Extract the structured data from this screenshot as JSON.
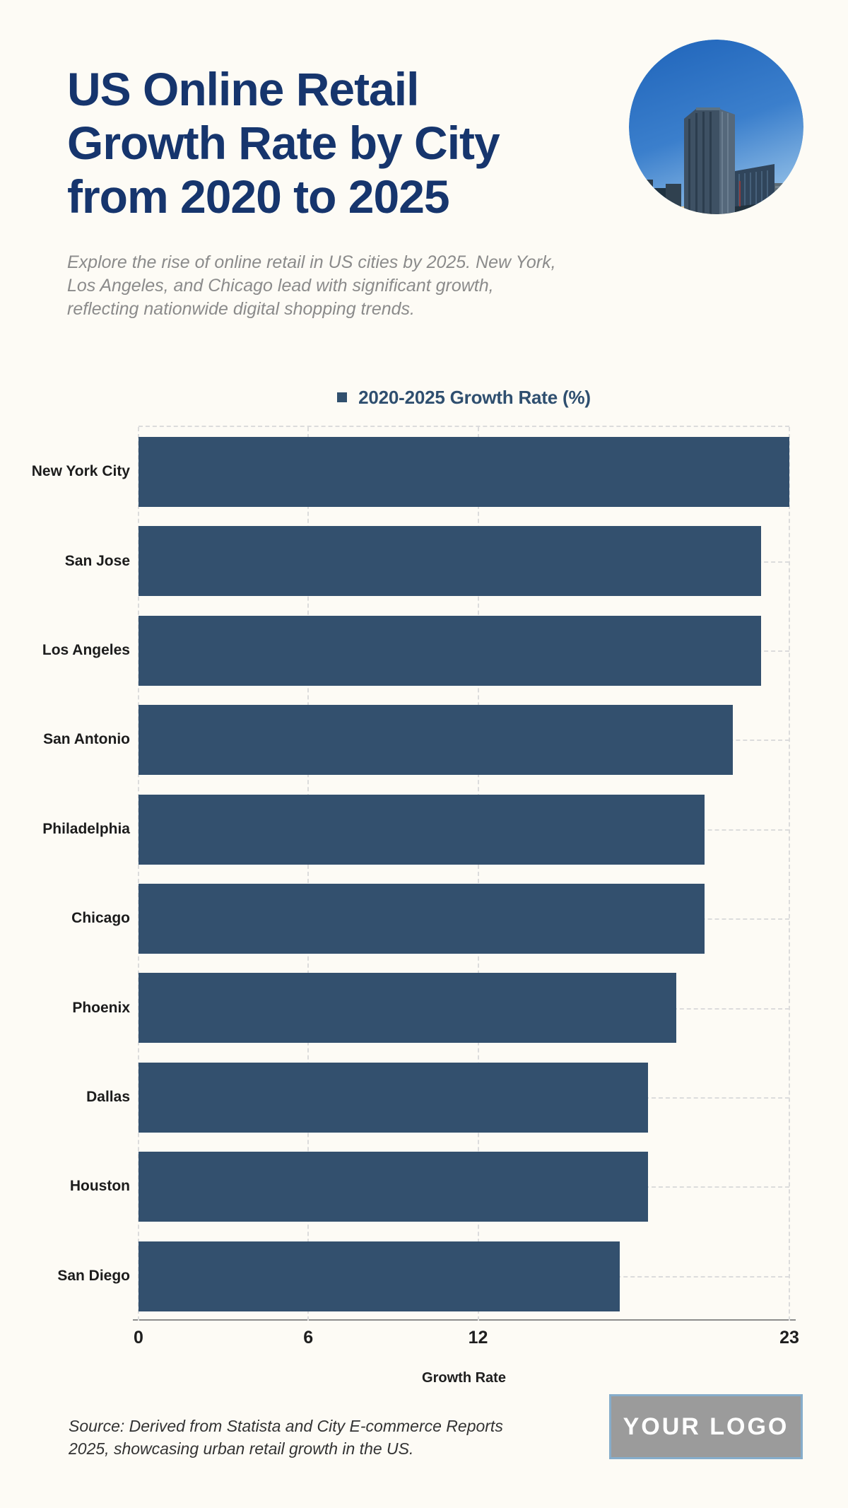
{
  "page": {
    "background": "#FDFBF5"
  },
  "header": {
    "title_lines": [
      "US Online Retail",
      "Growth Rate by City",
      "from 2020 to 2025"
    ],
    "title_color": "#16356D",
    "image": "city-skyline-photo"
  },
  "subtitle": {
    "lines": [
      "Explore the rise of online retail in US cities by 2025. New York,",
      "Los Angeles, and Chicago lead with significant growth,",
      "reflecting nationwide digital shopping trends."
    ]
  },
  "chart_data": {
    "type": "bar",
    "orientation": "horizontal",
    "legend_label": "2020-2025 Growth Rate (%)",
    "legend_position": "top",
    "categories": [
      "New York City",
      "San Jose",
      "Los Angeles",
      "San Antonio",
      "Philadelphia",
      "Chicago",
      "Phoenix",
      "Dallas",
      "Houston",
      "San Diego"
    ],
    "values": [
      23,
      22,
      22,
      21,
      20,
      20,
      19,
      18,
      18,
      17
    ],
    "xlabel": "Growth Rate",
    "xlim": [
      0,
      23
    ],
    "xticks": [
      0,
      6,
      12,
      23
    ],
    "bar_color": "#33506E",
    "grid": true
  },
  "footer": {
    "source_lines": [
      "Source: Derived from Statista and City E-commerce Reports",
      "2025, showcasing urban retail growth in the US."
    ],
    "logo_text": "YOUR LOGO"
  }
}
